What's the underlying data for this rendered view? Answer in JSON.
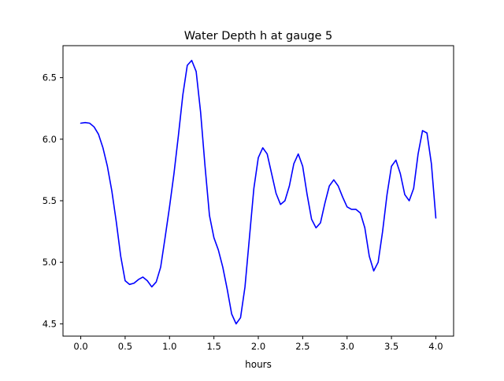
{
  "chart_data": {
    "type": "line",
    "title": "Water Depth h at gauge 5",
    "xlabel": "hours",
    "ylabel": "",
    "xlim": [
      -0.2,
      4.2
    ],
    "ylim": [
      4.4,
      6.76
    ],
    "grid": false,
    "x_ticks": [
      0.0,
      0.5,
      1.0,
      1.5,
      2.0,
      2.5,
      3.0,
      3.5,
      4.0
    ],
    "x_tick_labels": [
      "0.0",
      "0.5",
      "1.0",
      "1.5",
      "2.0",
      "2.5",
      "3.0",
      "3.5",
      "4.0"
    ],
    "y_ticks": [
      4.5,
      5.0,
      5.5,
      6.0,
      6.5
    ],
    "y_tick_labels": [
      "4.5",
      "5.0",
      "5.5",
      "6.0",
      "6.5"
    ],
    "series": [
      {
        "name": "",
        "color": "#0000ff",
        "points": [
          [
            0.0,
            6.13
          ],
          [
            0.05,
            6.135
          ],
          [
            0.1,
            6.13
          ],
          [
            0.15,
            6.1
          ],
          [
            0.2,
            6.04
          ],
          [
            0.25,
            5.93
          ],
          [
            0.3,
            5.78
          ],
          [
            0.35,
            5.58
          ],
          [
            0.4,
            5.33
          ],
          [
            0.45,
            5.05
          ],
          [
            0.5,
            4.85
          ],
          [
            0.55,
            4.82
          ],
          [
            0.6,
            4.83
          ],
          [
            0.65,
            4.86
          ],
          [
            0.7,
            4.88
          ],
          [
            0.75,
            4.85
          ],
          [
            0.8,
            4.8
          ],
          [
            0.85,
            4.84
          ],
          [
            0.9,
            4.96
          ],
          [
            0.95,
            5.2
          ],
          [
            1.0,
            5.45
          ],
          [
            1.05,
            5.72
          ],
          [
            1.1,
            6.03
          ],
          [
            1.15,
            6.36
          ],
          [
            1.2,
            6.6
          ],
          [
            1.25,
            6.64
          ],
          [
            1.3,
            6.55
          ],
          [
            1.35,
            6.22
          ],
          [
            1.4,
            5.78
          ],
          [
            1.45,
            5.38
          ],
          [
            1.5,
            5.2
          ],
          [
            1.55,
            5.1
          ],
          [
            1.6,
            4.96
          ],
          [
            1.65,
            4.78
          ],
          [
            1.7,
            4.58
          ],
          [
            1.75,
            4.5
          ],
          [
            1.8,
            4.55
          ],
          [
            1.85,
            4.8
          ],
          [
            1.9,
            5.2
          ],
          [
            1.95,
            5.6
          ],
          [
            2.0,
            5.85
          ],
          [
            2.05,
            5.93
          ],
          [
            2.1,
            5.88
          ],
          [
            2.15,
            5.72
          ],
          [
            2.2,
            5.56
          ],
          [
            2.25,
            5.47
          ],
          [
            2.3,
            5.5
          ],
          [
            2.35,
            5.62
          ],
          [
            2.4,
            5.8
          ],
          [
            2.45,
            5.88
          ],
          [
            2.5,
            5.78
          ],
          [
            2.55,
            5.55
          ],
          [
            2.6,
            5.35
          ],
          [
            2.65,
            5.28
          ],
          [
            2.7,
            5.32
          ],
          [
            2.75,
            5.48
          ],
          [
            2.8,
            5.62
          ],
          [
            2.85,
            5.67
          ],
          [
            2.9,
            5.62
          ],
          [
            2.95,
            5.53
          ],
          [
            3.0,
            5.45
          ],
          [
            3.05,
            5.43
          ],
          [
            3.1,
            5.43
          ],
          [
            3.15,
            5.4
          ],
          [
            3.2,
            5.28
          ],
          [
            3.25,
            5.05
          ],
          [
            3.3,
            4.93
          ],
          [
            3.35,
            5.0
          ],
          [
            3.4,
            5.25
          ],
          [
            3.45,
            5.55
          ],
          [
            3.5,
            5.78
          ],
          [
            3.55,
            5.83
          ],
          [
            3.6,
            5.72
          ],
          [
            3.65,
            5.55
          ],
          [
            3.7,
            5.5
          ],
          [
            3.75,
            5.6
          ],
          [
            3.8,
            5.88
          ],
          [
            3.85,
            6.07
          ],
          [
            3.9,
            6.05
          ],
          [
            3.95,
            5.8
          ],
          [
            4.0,
            5.36
          ]
        ]
      }
    ]
  }
}
